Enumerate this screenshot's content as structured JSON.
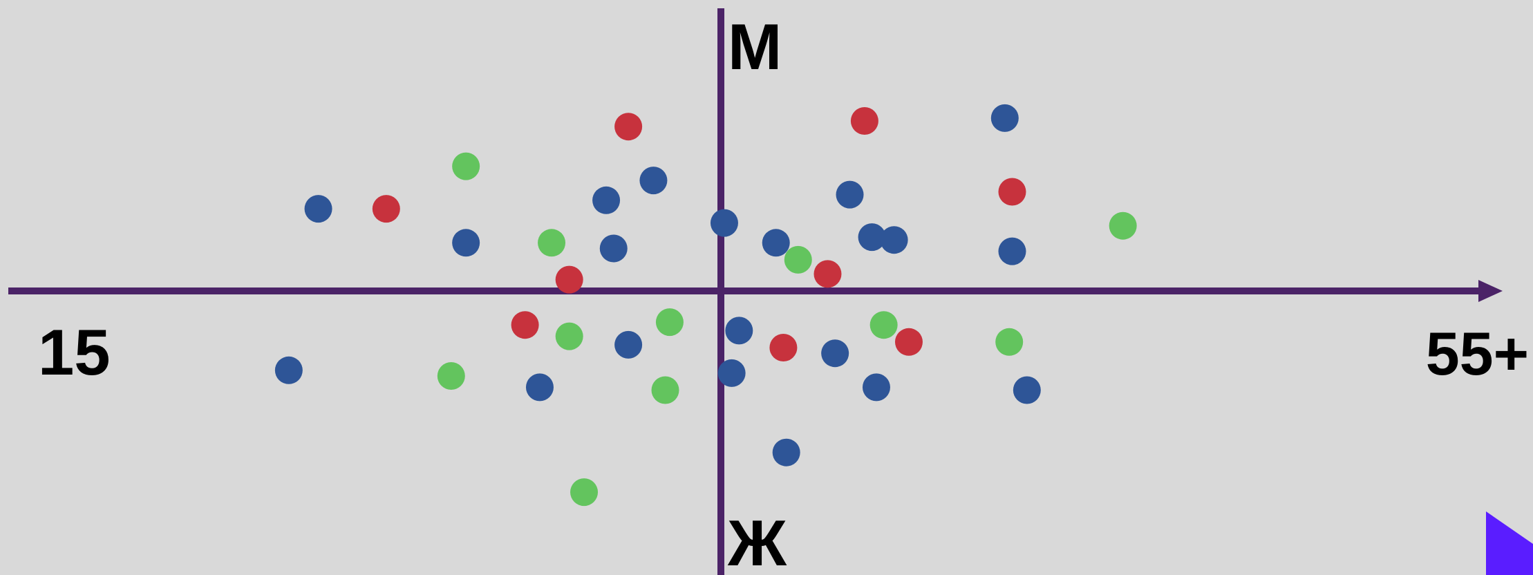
{
  "colors": {
    "background": "#d9d9d9",
    "axis": "#4b2367",
    "blue": "#2e5597",
    "red": "#c7323d",
    "green": "#63c45e",
    "corner_triangle": "#5a1dff"
  },
  "chart_data": {
    "type": "scatter",
    "title": "",
    "x_axis": {
      "min_label": "15",
      "max_label": "55+",
      "range": [
        0,
        1
      ]
    },
    "y_axis": {
      "top_label": "М",
      "bottom_label": "Ж",
      "range": [
        -1,
        1
      ]
    },
    "grid": false,
    "legend": "none",
    "series": [
      {
        "color": "blue",
        "points": [
          [
            0.21,
            0.29
          ],
          [
            0.31,
            0.17
          ],
          [
            0.41,
            0.15
          ],
          [
            0.405,
            0.32
          ],
          [
            0.437,
            0.39
          ],
          [
            0.485,
            0.24
          ],
          [
            0.52,
            0.17
          ],
          [
            0.57,
            0.34
          ],
          [
            0.585,
            0.19
          ],
          [
            0.6,
            0.18
          ],
          [
            0.675,
            0.61
          ],
          [
            0.68,
            0.14
          ],
          [
            0.19,
            -0.28
          ],
          [
            0.36,
            -0.34
          ],
          [
            0.42,
            -0.19
          ],
          [
            0.495,
            -0.14
          ],
          [
            0.49,
            -0.29
          ],
          [
            0.56,
            -0.22
          ],
          [
            0.588,
            -0.34
          ],
          [
            0.69,
            -0.35
          ],
          [
            0.527,
            -0.57
          ]
        ]
      },
      {
        "color": "red",
        "points": [
          [
            0.256,
            0.29
          ],
          [
            0.42,
            0.58
          ],
          [
            0.38,
            0.04
          ],
          [
            0.58,
            0.6
          ],
          [
            0.68,
            0.35
          ],
          [
            0.555,
            0.06
          ],
          [
            0.35,
            -0.12
          ],
          [
            0.525,
            -0.2
          ],
          [
            0.61,
            -0.18
          ]
        ]
      },
      {
        "color": "green",
        "points": [
          [
            0.31,
            0.44
          ],
          [
            0.368,
            0.17
          ],
          [
            0.535,
            0.11
          ],
          [
            0.755,
            0.23
          ],
          [
            0.448,
            -0.11
          ],
          [
            0.38,
            -0.16
          ],
          [
            0.3,
            -0.3
          ],
          [
            0.445,
            -0.35
          ],
          [
            0.593,
            -0.12
          ],
          [
            0.678,
            -0.18
          ],
          [
            0.39,
            -0.71
          ]
        ]
      }
    ]
  }
}
